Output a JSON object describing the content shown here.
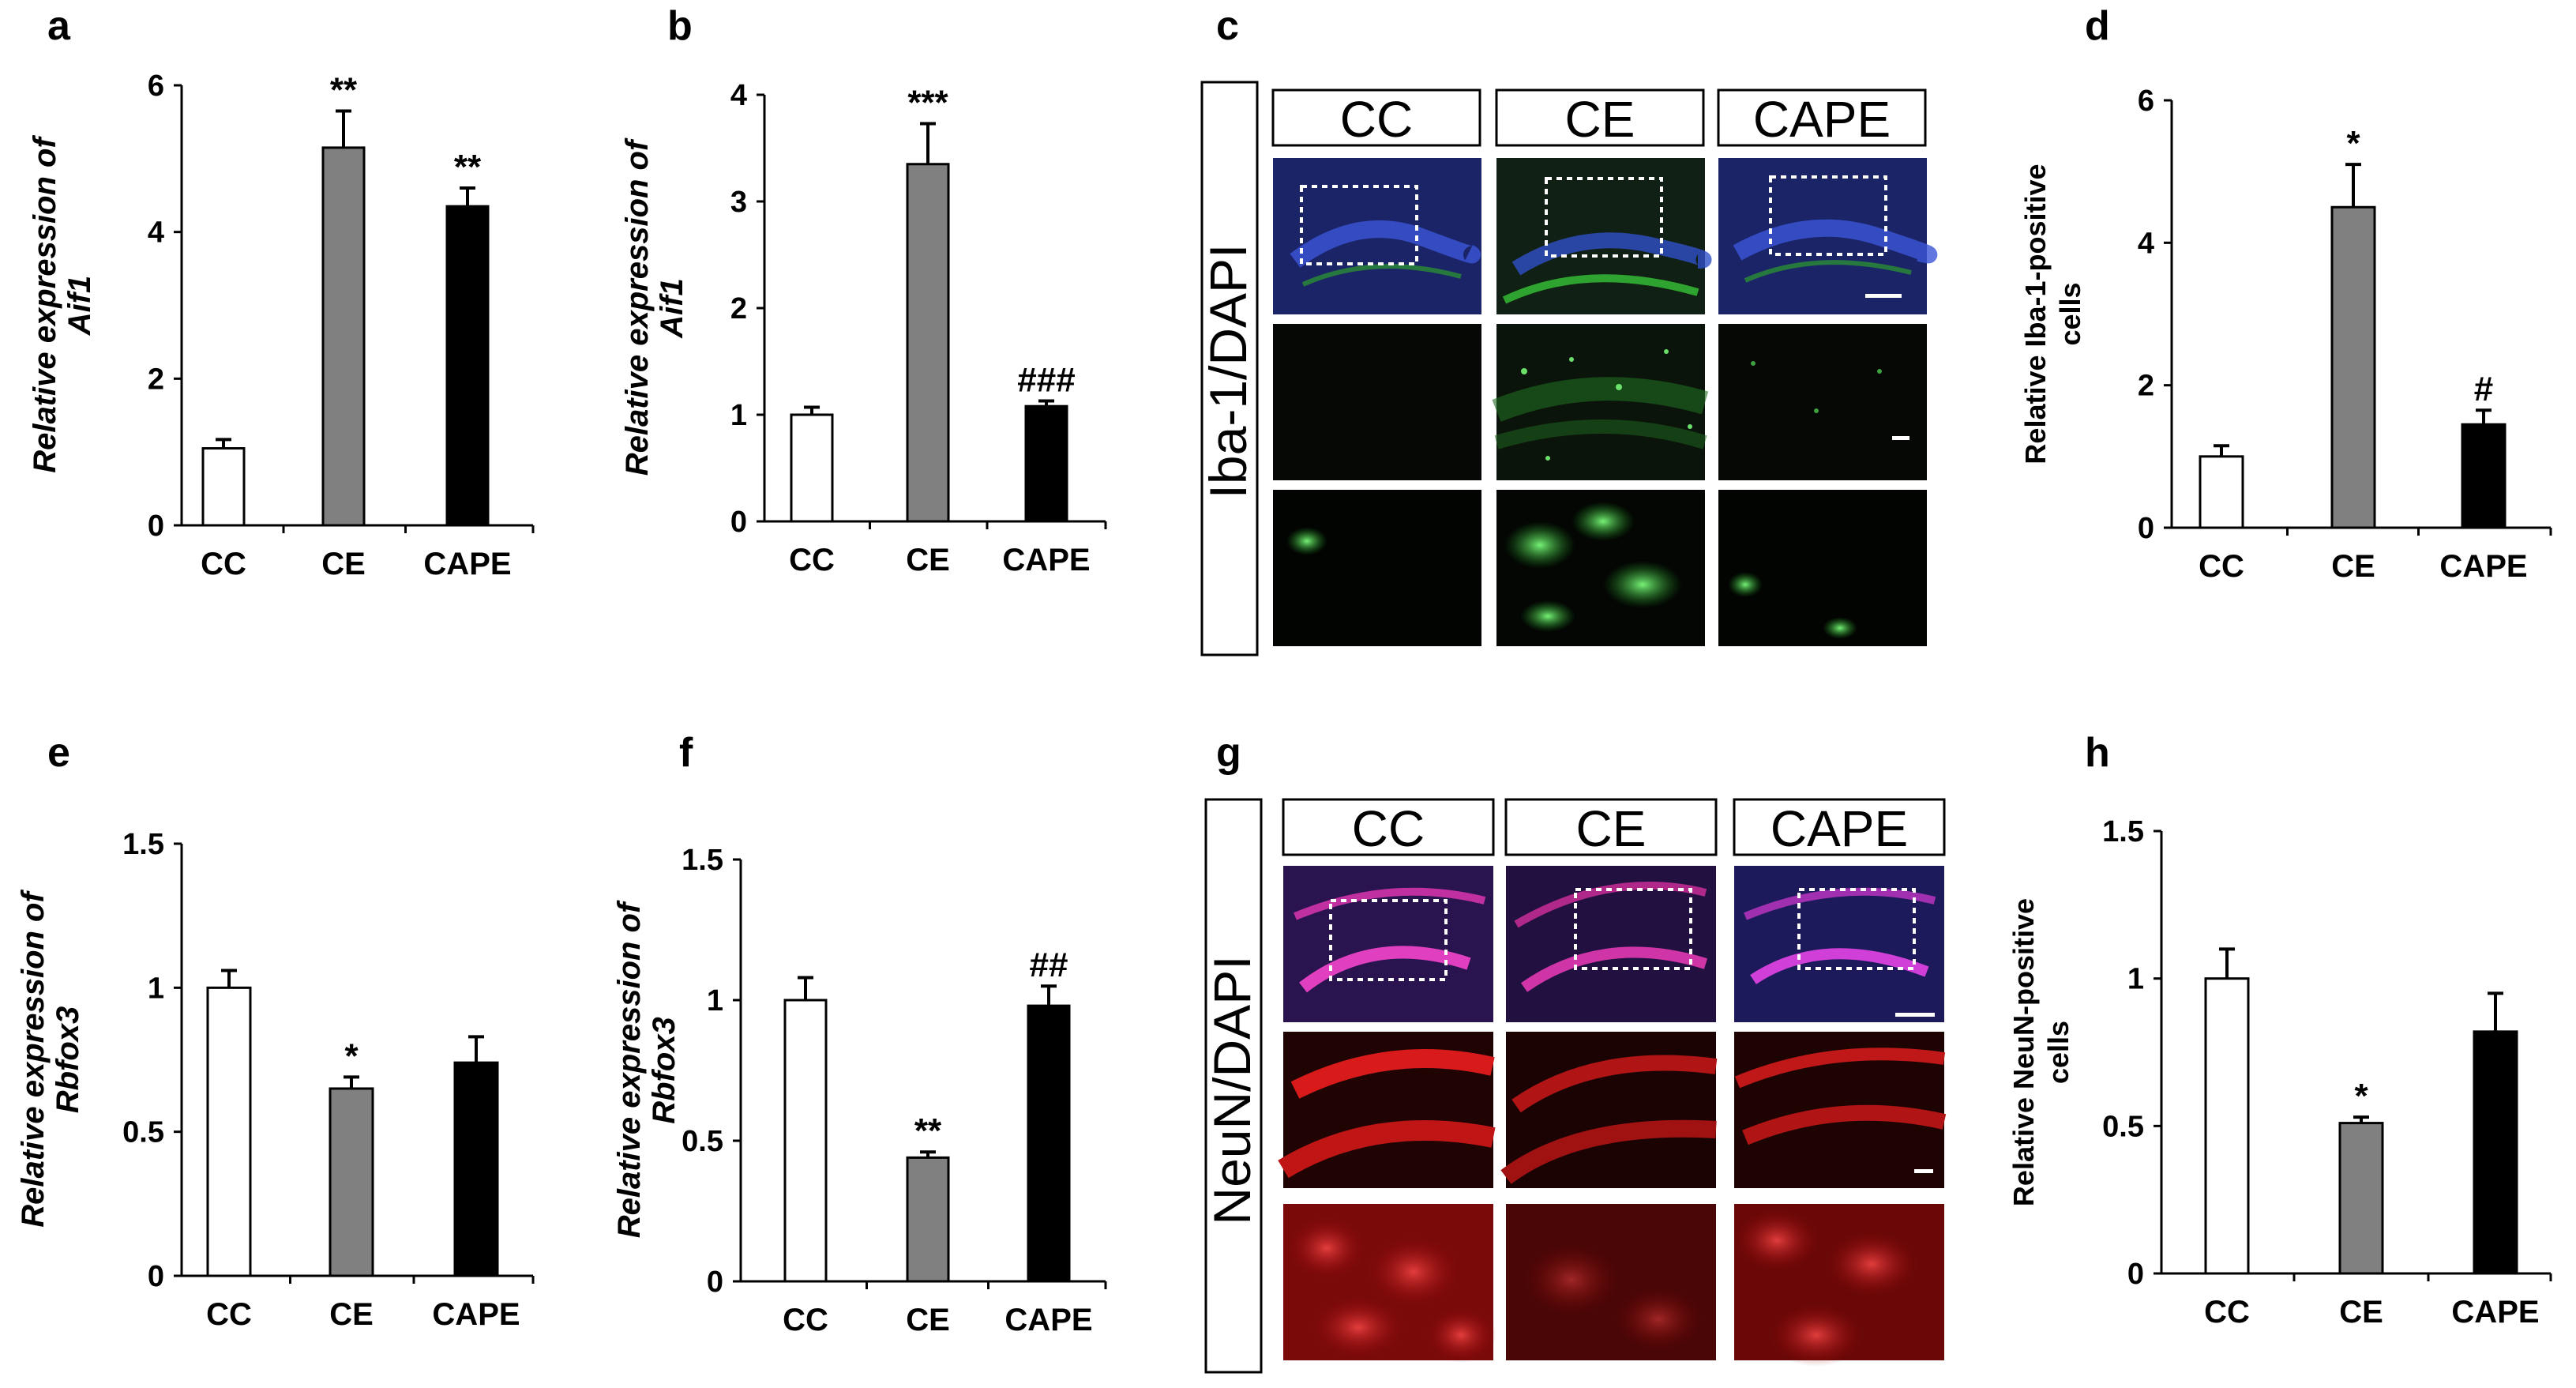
{
  "panels": {
    "a": "a",
    "b": "b",
    "c": "c",
    "d": "d",
    "e": "e",
    "f": "f",
    "g": "g",
    "h": "h"
  },
  "colors": {
    "CC": "#ffffff",
    "CE": "#808080",
    "CAPE": "#000000"
  },
  "chart_data": [
    {
      "id": "a",
      "type": "bar",
      "categories": [
        "CC",
        "CE",
        "CAPE"
      ],
      "values": [
        1.05,
        5.15,
        4.35
      ],
      "errors": [
        0.12,
        0.5,
        0.25
      ],
      "annotations": [
        "",
        "**",
        "**"
      ],
      "ylabel_line1": "Relative expression of",
      "ylabel_line2": "Aif1",
      "ylim": [
        0,
        6
      ],
      "ticks": [
        "0",
        "2",
        "4",
        "6"
      ]
    },
    {
      "id": "b",
      "type": "bar",
      "categories": [
        "CC",
        "CE",
        "CAPE"
      ],
      "values": [
        1.0,
        3.35,
        1.08
      ],
      "errors": [
        0.07,
        0.38,
        0.05
      ],
      "annotations": [
        "",
        "***",
        "###"
      ],
      "ylabel_line1": "Relative expression of",
      "ylabel_line2": "Aif1",
      "ylim": [
        0,
        4
      ],
      "ticks": [
        "0",
        "1",
        "2",
        "3",
        "4"
      ]
    },
    {
      "id": "d",
      "type": "bar",
      "categories": [
        "CC",
        "CE",
        "CAPE"
      ],
      "values": [
        1.0,
        4.5,
        1.45
      ],
      "errors": [
        0.15,
        0.6,
        0.2
      ],
      "annotations": [
        "",
        "*",
        "#"
      ],
      "ylabel_line1": "Relative Iba-1-positive",
      "ylabel_line2": "cells",
      "ylim": [
        0,
        6
      ],
      "ticks": [
        "0",
        "2",
        "4",
        "6"
      ]
    },
    {
      "id": "e",
      "type": "bar",
      "categories": [
        "CC",
        "CE",
        "CAPE"
      ],
      "values": [
        1.0,
        0.65,
        0.74
      ],
      "errors": [
        0.06,
        0.04,
        0.09
      ],
      "annotations": [
        "",
        "*",
        ""
      ],
      "ylabel_line1": "Relative expression of",
      "ylabel_line2": "Rbfox3",
      "ylim": [
        0,
        1.5
      ],
      "ticks": [
        "0",
        "0.5",
        "1",
        "1.5"
      ]
    },
    {
      "id": "f",
      "type": "bar",
      "categories": [
        "CC",
        "CE",
        "CAPE"
      ],
      "values": [
        1.0,
        0.44,
        0.98
      ],
      "errors": [
        0.08,
        0.02,
        0.07
      ],
      "annotations": [
        "",
        "**",
        "##"
      ],
      "ylabel_line1": "Relative expression of",
      "ylabel_line2": "Rbfox3",
      "ylim": [
        0,
        1.5
      ],
      "ticks": [
        "0",
        "0.5",
        "1",
        "1.5"
      ]
    },
    {
      "id": "h",
      "type": "bar",
      "categories": [
        "CC",
        "CE",
        "CAPE"
      ],
      "values": [
        1.0,
        0.51,
        0.82
      ],
      "errors": [
        0.1,
        0.02,
        0.13
      ],
      "annotations": [
        "",
        "*",
        ""
      ],
      "ylabel_line1": "Relative NeuN-positive",
      "ylabel_line2": "cells",
      "ylim": [
        0,
        1.5
      ],
      "ticks": [
        "0",
        "0.5",
        "1",
        "1.5"
      ]
    }
  ],
  "micrographs": {
    "c": {
      "side_label": "Iba-1/DAPI",
      "columns": [
        "CC",
        "CE",
        "CAPE"
      ],
      "stain_color": "#2e9c2e",
      "background_top": "#1d2a7a"
    },
    "g": {
      "side_label": "NeuN/DAPI",
      "columns": [
        "CC",
        "CE",
        "CAPE"
      ],
      "stain_color": "#c01515",
      "background_top": "#3a1a5a"
    }
  }
}
